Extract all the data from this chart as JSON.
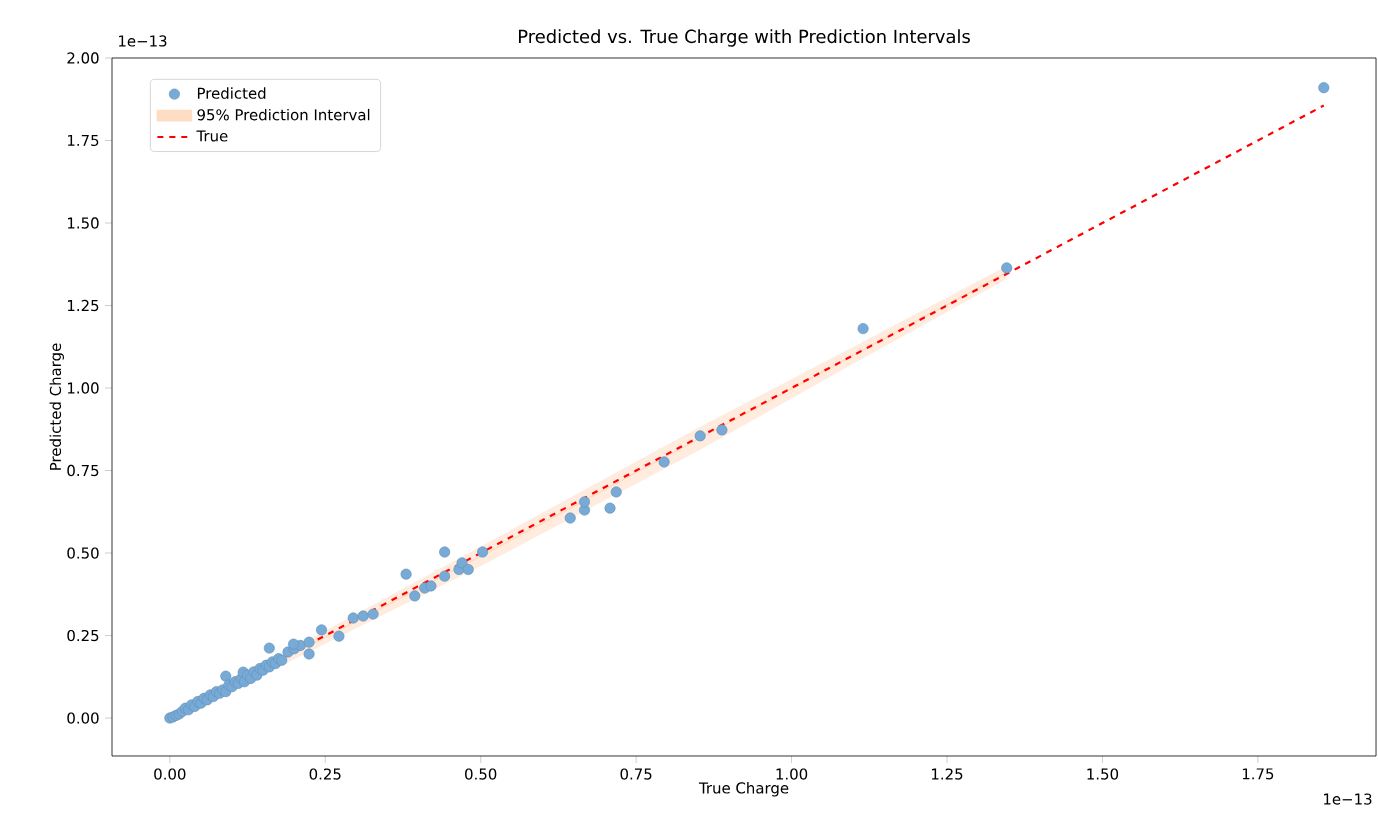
{
  "chart_data": {
    "type": "scatter",
    "title": "Predicted vs. True Charge with Prediction Intervals",
    "xlabel": "True Charge",
    "ylabel": "Predicted Charge",
    "annotations": [
      "1e−13",
      "1e−13"
    ],
    "xlim": [
      -0.093,
      1.94
    ],
    "ylim": [
      -0.115,
      2.0
    ],
    "xticks": [
      {
        "value": 0,
        "label": "0.00"
      },
      {
        "value": 0.25,
        "label": "0.25"
      },
      {
        "value": 0.5,
        "label": "0.50"
      },
      {
        "value": 0.75,
        "label": "0.75"
      },
      {
        "value": 1.0,
        "label": "1.00"
      },
      {
        "value": 1.25,
        "label": "1.25"
      },
      {
        "value": 1.5,
        "label": "1.50"
      },
      {
        "value": 1.75,
        "label": "1.75"
      }
    ],
    "yticks": [
      {
        "value": 0,
        "label": "0.00"
      },
      {
        "value": 0.25,
        "label": "0.25"
      },
      {
        "value": 0.5,
        "label": "0.50"
      },
      {
        "value": 0.75,
        "label": "0.75"
      },
      {
        "value": 1.0,
        "label": "1.00"
      },
      {
        "value": 1.25,
        "label": "1.25"
      },
      {
        "value": 1.5,
        "label": "1.50"
      },
      {
        "value": 1.75,
        "label": "1.75"
      },
      {
        "value": 2.0,
        "label": "2.00"
      }
    ],
    "legend": "top left",
    "series": [
      {
        "type": "scatter",
        "name": "Predicted",
        "color": "#77aad6",
        "marker": "circle",
        "x": [
          0,
          0.005,
          0.01,
          0.015,
          0.02,
          0.025,
          0.03,
          0.035,
          0.04,
          0.045,
          0.05,
          0.055,
          0.06,
          0.065,
          0.07,
          0.075,
          0.08,
          0.085,
          0.09,
          0.09,
          0.095,
          0.1,
          0.105,
          0.11,
          0.115,
          0.118,
          0.12,
          0.125,
          0.13,
          0.135,
          0.14,
          0.145,
          0.15,
          0.155,
          0.16,
          0.16,
          0.165,
          0.17,
          0.175,
          0.18,
          0.19,
          0.2,
          0.21,
          0.224,
          0.199,
          0.224,
          0.244,
          0.272,
          0.295,
          0.311,
          0.327,
          0.38,
          0.394,
          0.41,
          0.42,
          0.442,
          0.442,
          0.465,
          0.47,
          0.48,
          0.503,
          0.644,
          0.667,
          0.667,
          0.708,
          0.718,
          0.795,
          0.853,
          0.888,
          1.115,
          1.346,
          1.856
        ],
        "values": [
          0,
          0.003,
          0.008,
          0.012,
          0.02,
          0.03,
          0.025,
          0.04,
          0.035,
          0.05,
          0.045,
          0.06,
          0.055,
          0.07,
          0.065,
          0.08,
          0.075,
          0.085,
          0.127,
          0.08,
          0.1,
          0.095,
          0.11,
          0.105,
          0.12,
          0.139,
          0.11,
          0.13,
          0.12,
          0.14,
          0.13,
          0.15,
          0.145,
          0.16,
          0.212,
          0.155,
          0.17,
          0.165,
          0.18,
          0.175,
          0.2,
          0.21,
          0.22,
          0.23,
          0.224,
          0.194,
          0.267,
          0.248,
          0.303,
          0.309,
          0.315,
          0.436,
          0.37,
          0.394,
          0.4,
          0.43,
          0.503,
          0.45,
          0.47,
          0.45,
          0.503,
          0.606,
          0.63,
          0.655,
          0.636,
          0.685,
          0.776,
          0.855,
          0.873,
          1.18,
          1.364,
          1.91
        ]
      },
      {
        "type": "line",
        "name": "95% Prediction Interval",
        "color": "#ffdcc4",
        "x": [
          0,
          0.25,
          0.5,
          0.85,
          1.115,
          1.346
        ],
        "values": [
          0,
          0.245,
          0.49,
          0.845,
          1.115,
          1.35
        ],
        "lower": [
          -0.01,
          0.225,
          0.46,
          0.81,
          1.09,
          1.33
        ],
        "upper": [
          0.01,
          0.265,
          0.52,
          0.88,
          1.14,
          1.37
        ]
      },
      {
        "type": "line",
        "name": "True",
        "color": "#ff0000",
        "line_style": "dashed",
        "x": [
          0,
          1.856
        ],
        "values": [
          0,
          1.856
        ]
      }
    ]
  }
}
